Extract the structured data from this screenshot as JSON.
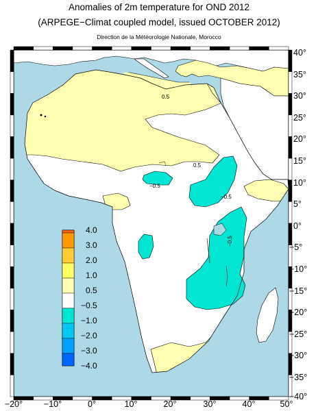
{
  "title": "Anomalies of 2m temperature for OND 2012",
  "subtitle": "(ARPEGE−Climat coupled model, issued OCTOBER 2012)",
  "credit": "Direction de la Météorologie Nationale, Morocco",
  "map": {
    "lon_range": [
      -20,
      50
    ],
    "lat_range": [
      -40,
      40
    ],
    "lon_ticks": [
      "−20°",
      "−10°",
      "0°",
      "10°",
      "20°",
      "30°",
      "40°",
      "50°"
    ],
    "lat_ticks": [
      "40°",
      "35°",
      "30°",
      "25°",
      "20°",
      "15°",
      "10°",
      "5°",
      "0°",
      "−5°",
      "−10°",
      "−15°",
      "−20°",
      "−25°",
      "−30°",
      "−35°",
      "−40°"
    ],
    "contour_labels": [
      "0.5",
      "0.5",
      "−0.5",
      "−0.5",
      "−0.5"
    ],
    "colors": {
      "ocean": "#add8e6",
      "land": "#ffffff",
      "warm": "#ffffb4",
      "cool": "#00e6d2"
    }
  },
  "legend": {
    "labels": [
      "4.0",
      "3.0",
      "2.0",
      "1.0",
      "0.5",
      "−0.5",
      "−1.0",
      "−2.0",
      "−3.0",
      "−4.0"
    ],
    "colors": [
      "#ff6000",
      "#ff9900",
      "#ffcc33",
      "#ffff66",
      "#ffffb4",
      "#ffffff",
      "#00e6d2",
      "#00c8f0",
      "#00a0ff",
      "#0064ff",
      "#2040ff"
    ]
  }
}
